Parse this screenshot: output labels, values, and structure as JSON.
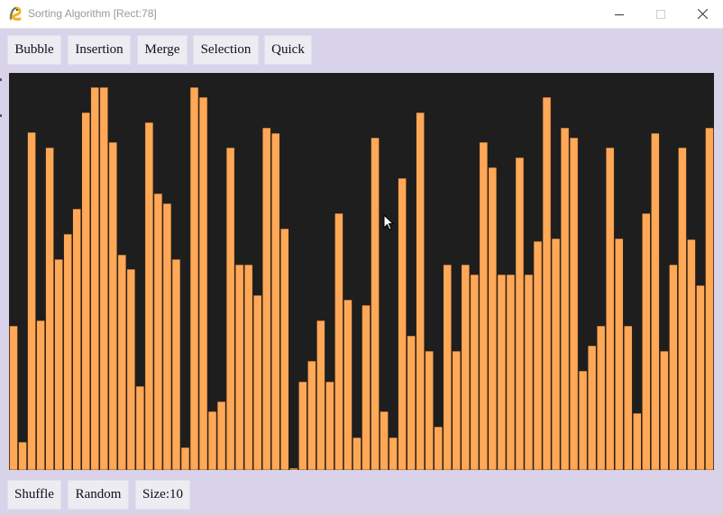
{
  "window": {
    "title": "Sorting Algorithm [Rect:78]"
  },
  "algorithms": [
    "Bubble",
    "Insertion",
    "Merge",
    "Selection",
    "Quick"
  ],
  "controls": {
    "shuffle_label": "Shuffle",
    "random_label": "Random",
    "size_label": "Size:10"
  },
  "colors": {
    "bar": "#ffa858",
    "bar_stroke": "#3a2410",
    "canvas": "#1e1e1e",
    "background": "#d9d3ea"
  },
  "icons": {
    "app": "pygame-snake-icon",
    "cursor": "mouse-pointer-icon"
  },
  "chart_data": {
    "type": "bar",
    "bar_count": 78,
    "ylim": [
      0,
      441
    ],
    "values": [
      160,
      31,
      375,
      166,
      358,
      234,
      262,
      290,
      397,
      425,
      425,
      364,
      239,
      223,
      93,
      386,
      307,
      296,
      234,
      25,
      425,
      414,
      65,
      76,
      358,
      228,
      228,
      194,
      380,
      374,
      268,
      2,
      98,
      121,
      166,
      98,
      285,
      189,
      36,
      183,
      369,
      65,
      36,
      324,
      149,
      397,
      132,
      48,
      228,
      132,
      228,
      217,
      364,
      336,
      217,
      217,
      347,
      217,
      254,
      414,
      257,
      380,
      369,
      110,
      138,
      160,
      358,
      257,
      160,
      63,
      285,
      374,
      132,
      228,
      358,
      256,
      205,
      380
    ]
  }
}
